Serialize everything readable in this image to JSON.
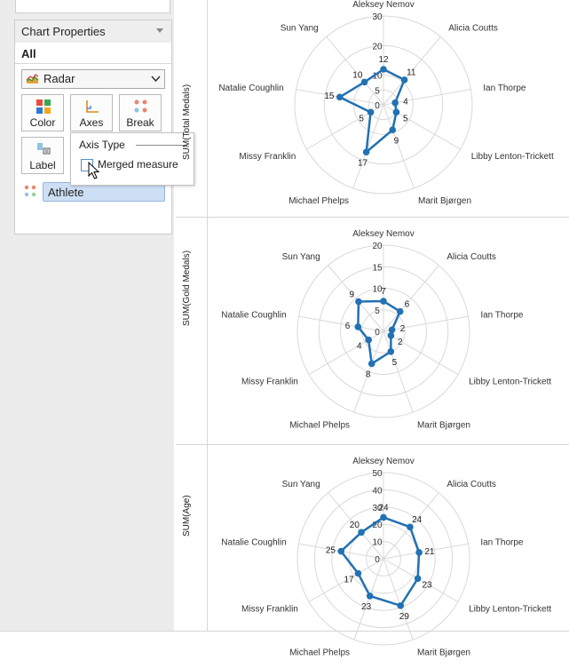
{
  "panel": {
    "title": "Chart Properties",
    "scope_label": "All",
    "chart_type": "Radar",
    "buttons": {
      "color": "Color",
      "axes": "Axes",
      "break": "Break",
      "label": "Label"
    },
    "field_pill": "Athlete",
    "axis_popup": {
      "title": "Axis Type",
      "option_label": "Merged measure",
      "option_checked": false
    }
  },
  "colors": {
    "series": "#2271b3",
    "grid": "#d9d9d9",
    "accent": "#2271b3"
  },
  "chart_data": [
    {
      "type": "radar",
      "measure_label": "SUM(Total Medals)",
      "categories": [
        "Aleksey Nemov",
        "Alicia Coutts",
        "Ian Thorpe",
        "Libby Lenton-Trickett",
        "Marit Bjørgen",
        "Michael Phelps",
        "Missy Franklin",
        "Natalie Coughlin",
        "Sun Yang"
      ],
      "values": [
        12,
        11,
        4,
        5,
        9,
        17,
        5,
        15,
        10
      ],
      "ticks": [
        0,
        5,
        10,
        20,
        30
      ],
      "rmax": 30
    },
    {
      "type": "radar",
      "measure_label": "SUM(Gold Medals)",
      "categories": [
        "Aleksey Nemov",
        "Alicia Coutts",
        "Ian Thorpe",
        "Libby Lenton-Trickett",
        "Marit Bjørgen",
        "Michael Phelps",
        "Missy Franklin",
        "Natalie Coughlin",
        "Sun Yang"
      ],
      "values": [
        7,
        6,
        2,
        2,
        5,
        8,
        4,
        6,
        9
      ],
      "ticks": [
        0,
        5,
        10,
        15,
        20
      ],
      "rmax": 20
    },
    {
      "type": "radar",
      "measure_label": "SUM(Age)",
      "categories": [
        "Aleksey Nemov",
        "Alicia Coutts",
        "Ian Thorpe",
        "Libby Lenton-Trickett",
        "Marit Bjørgen",
        "Michael Phelps",
        "Missy Franklin",
        "Natalie Coughlin",
        "Sun Yang"
      ],
      "values": [
        24,
        24,
        21,
        23,
        29,
        23,
        17,
        25,
        20
      ],
      "ticks": [
        0,
        10,
        20,
        30,
        40,
        50
      ],
      "rmax": 50
    }
  ]
}
